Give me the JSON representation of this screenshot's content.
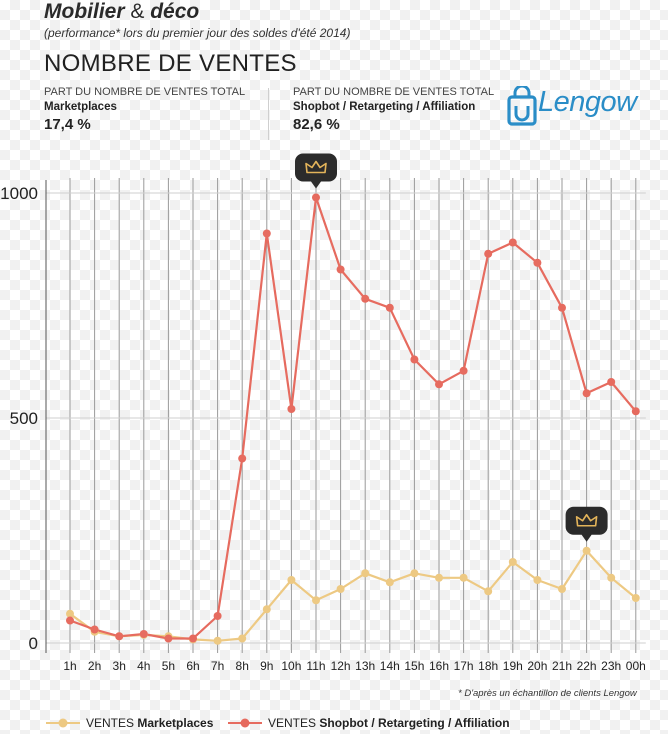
{
  "header": {
    "title_bold": "Mobilier",
    "title_amp": "&",
    "title_end": "déco",
    "subtitle": "(performance* lors du premier jour des soldes d'été 2014)",
    "heading": "NOMBRE DE VENTES"
  },
  "stats": [
    {
      "label": "PART DU NOMBRE DE VENTES TOTAL",
      "name": "Marketplaces",
      "value": "17,4 %"
    },
    {
      "label": "PART DU NOMBRE DE VENTES TOTAL",
      "name": "Shopbot / Retargeting / Affiliation",
      "value": "82,6 %"
    }
  ],
  "logo": {
    "text": "Lengow",
    "color": "#2a8dc7"
  },
  "footnote": "* D'après un échantillon de clients Lengow",
  "chart_data": {
    "type": "line",
    "title": "NOMBRE DE VENTES",
    "categories": [
      "1h",
      "2h",
      "3h",
      "4h",
      "5h",
      "6h",
      "7h",
      "8h",
      "9h",
      "10h",
      "11h",
      "12h",
      "13h",
      "14h",
      "15h",
      "16h",
      "17h",
      "18h",
      "19h",
      "20h",
      "21h",
      "22h",
      "23h",
      "00h"
    ],
    "y_ticks": [
      "0",
      "500",
      "1000"
    ],
    "ylim": [
      0,
      1000
    ],
    "grid": true,
    "series": [
      {
        "name": "VENTES Marketplaces",
        "prefix": "VENTES",
        "bold": "Marketplaces",
        "color": "#edc983",
        "values": [
          65,
          25,
          15,
          18,
          15,
          8,
          5,
          10,
          75,
          140,
          95,
          120,
          155,
          135,
          155,
          145,
          145,
          115,
          180,
          140,
          120,
          205,
          145,
          100
        ]
      },
      {
        "name": "VENTES Shopbot / Retargeting / Affiliation",
        "prefix": "VENTES",
        "bold": "Shopbot / Retargeting / Affiliation",
        "color": "#e66b5f",
        "values": [
          50,
          30,
          15,
          20,
          10,
          10,
          60,
          410,
          910,
          520,
          990,
          830,
          765,
          745,
          630,
          575,
          605,
          865,
          890,
          845,
          745,
          555,
          580,
          515
        ]
      }
    ],
    "annotations": [
      {
        "icon": "crown-icon",
        "series": 1,
        "category": "11h"
      },
      {
        "icon": "crown-icon",
        "series": 0,
        "category": "22h"
      }
    ]
  }
}
